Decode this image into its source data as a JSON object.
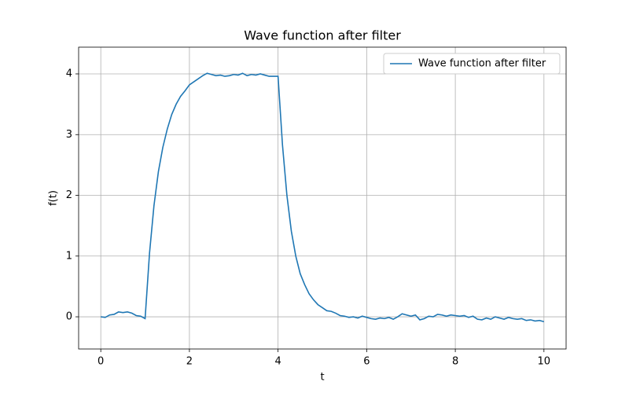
{
  "chart_data": {
    "type": "line",
    "title": "Wave function after filter",
    "x_label": "t",
    "y_label": "f(t)",
    "x": [
      0.0,
      0.1,
      0.2,
      0.3,
      0.4,
      0.5,
      0.6,
      0.7,
      0.8,
      0.9,
      1.0,
      1.1,
      1.2,
      1.3,
      1.4,
      1.5,
      1.6,
      1.7,
      1.8,
      1.9,
      2.0,
      2.1,
      2.2,
      2.3,
      2.4,
      2.5,
      2.6,
      2.7,
      2.8,
      2.9,
      3.0,
      3.1,
      3.2,
      3.3,
      3.4,
      3.5,
      3.6,
      3.7,
      3.8,
      3.9,
      4.0,
      4.1,
      4.2,
      4.3,
      4.4,
      4.5,
      4.6,
      4.7,
      4.8,
      4.9,
      5.0,
      5.1,
      5.2,
      5.3,
      5.4,
      5.5,
      5.6,
      5.7,
      5.8,
      5.9,
      6.0,
      6.1,
      6.2,
      6.3,
      6.4,
      6.5,
      6.6,
      6.7,
      6.8,
      6.9,
      7.0,
      7.1,
      7.2,
      7.3,
      7.4,
      7.5,
      7.6,
      7.7,
      7.8,
      7.9,
      8.0,
      8.1,
      8.2,
      8.3,
      8.4,
      8.5,
      8.6,
      8.7,
      8.8,
      8.9,
      9.0,
      9.1,
      9.2,
      9.3,
      9.4,
      9.5,
      9.6,
      9.7,
      9.8,
      9.9,
      10.0
    ],
    "series": [
      {
        "name": "Wave function after filter",
        "color": "#1f77b4",
        "values": [
          0.0,
          -0.01,
          0.03,
          0.04,
          0.08,
          0.07,
          0.08,
          0.06,
          0.02,
          0.01,
          -0.03,
          1.05,
          1.83,
          2.39,
          2.79,
          3.09,
          3.33,
          3.5,
          3.63,
          3.72,
          3.82,
          3.87,
          3.92,
          3.97,
          4.01,
          3.99,
          3.97,
          3.98,
          3.96,
          3.97,
          3.99,
          3.98,
          4.01,
          3.97,
          3.99,
          3.98,
          4.0,
          3.98,
          3.96,
          3.96,
          3.96,
          2.83,
          2.0,
          1.41,
          1.0,
          0.71,
          0.53,
          0.38,
          0.28,
          0.2,
          0.15,
          0.1,
          0.09,
          0.06,
          0.02,
          0.01,
          -0.01,
          0.0,
          -0.02,
          0.01,
          -0.01,
          -0.03,
          -0.04,
          -0.02,
          -0.03,
          -0.01,
          -0.04,
          0.0,
          0.05,
          0.03,
          0.01,
          0.03,
          -0.05,
          -0.03,
          0.01,
          0.0,
          0.04,
          0.03,
          0.01,
          0.03,
          0.02,
          0.01,
          0.02,
          -0.01,
          0.01,
          -0.04,
          -0.05,
          -0.02,
          -0.04,
          0.0,
          -0.02,
          -0.04,
          -0.01,
          -0.03,
          -0.04,
          -0.03,
          -0.06,
          -0.05,
          -0.07,
          -0.06,
          -0.08
        ]
      }
    ],
    "xlim": [
      -0.5,
      10.5
    ],
    "ylim": [
      -0.53,
      4.44
    ],
    "xticks": [
      0,
      2,
      4,
      6,
      8,
      10
    ],
    "yticks": [
      0,
      1,
      2,
      3,
      4
    ],
    "grid": true,
    "legend": "upper right"
  }
}
